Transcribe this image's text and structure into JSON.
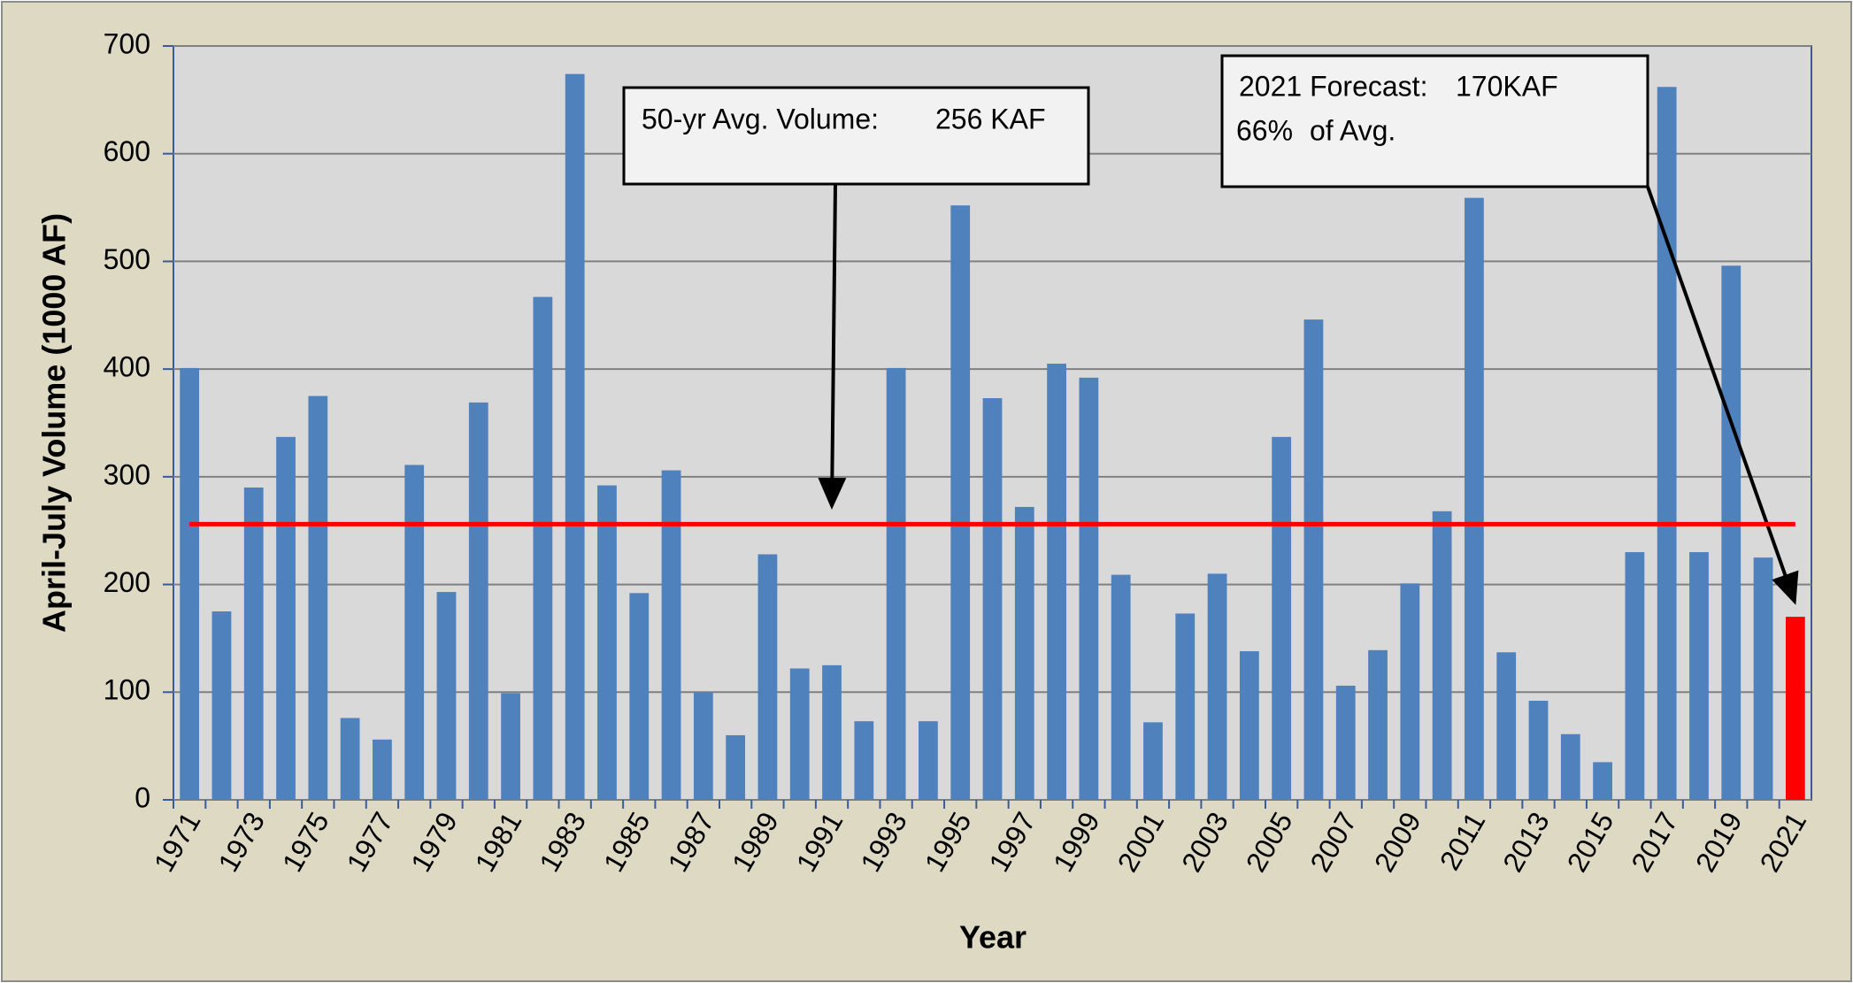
{
  "chart_data": {
    "type": "bar",
    "y_label": "April-July Volume (1000 AF)",
    "x_label": "Year",
    "categories": [
      "1971",
      null,
      "1973",
      null,
      "1975",
      null,
      "1977",
      null,
      "1979",
      null,
      "1981",
      null,
      "1983",
      null,
      "1985",
      null,
      "1987",
      null,
      "1989",
      null,
      "1991",
      null,
      "1993",
      null,
      "1995",
      null,
      "1997",
      null,
      "1999",
      null,
      "2001",
      null,
      "2003",
      null,
      "2005",
      null,
      "2007",
      null,
      "2009",
      null,
      "2011",
      null,
      "2013",
      null,
      "2015",
      null,
      "2017",
      null,
      "2019",
      null,
      "2021"
    ],
    "values": [
      401,
      175,
      290,
      337,
      375,
      76,
      56,
      311,
      193,
      369,
      99,
      467,
      674,
      292,
      192,
      306,
      100,
      60,
      228,
      122,
      125,
      73,
      401,
      73,
      552,
      373,
      272,
      405,
      392,
      209,
      72,
      173,
      210,
      138,
      337,
      446,
      106,
      139,
      201,
      268,
      559,
      137,
      92,
      61,
      35,
      230,
      662,
      230,
      496,
      225,
      170
    ],
    "colors": [
      "#4f81bd",
      "#4f81bd",
      "#4f81bd",
      "#4f81bd",
      "#4f81bd",
      "#4f81bd",
      "#4f81bd",
      "#4f81bd",
      "#4f81bd",
      "#4f81bd",
      "#4f81bd",
      "#4f81bd",
      "#4f81bd",
      "#4f81bd",
      "#4f81bd",
      "#4f81bd",
      "#4f81bd",
      "#4f81bd",
      "#4f81bd",
      "#4f81bd",
      "#4f81bd",
      "#4f81bd",
      "#4f81bd",
      "#4f81bd",
      "#4f81bd",
      "#4f81bd",
      "#4f81bd",
      "#4f81bd",
      "#4f81bd",
      "#4f81bd",
      "#4f81bd",
      "#4f81bd",
      "#4f81bd",
      "#4f81bd",
      "#4f81bd",
      "#4f81bd",
      "#4f81bd",
      "#4f81bd",
      "#4f81bd",
      "#4f81bd",
      "#4f81bd",
      "#4f81bd",
      "#4f81bd",
      "#4f81bd",
      "#4f81bd",
      "#4f81bd",
      "#4f81bd",
      "#4f81bd",
      "#4f81bd",
      "#4f81bd",
      "#ff0000"
    ],
    "average_line": {
      "value": 256,
      "color": "#ff0000"
    },
    "annotations": [
      {
        "text": "50-yr Avg. Volume:",
        "value_label": "256 KAF"
      },
      {
        "text": "2021 Forecast:",
        "value_label": "170KAF"
      },
      {
        "text": "of Avg.",
        "value_label": "66%"
      }
    ],
    "ylim": [
      0,
      700
    ],
    "yticks": [
      0,
      100,
      200,
      300,
      400,
      500,
      600,
      700
    ],
    "grid": true
  }
}
